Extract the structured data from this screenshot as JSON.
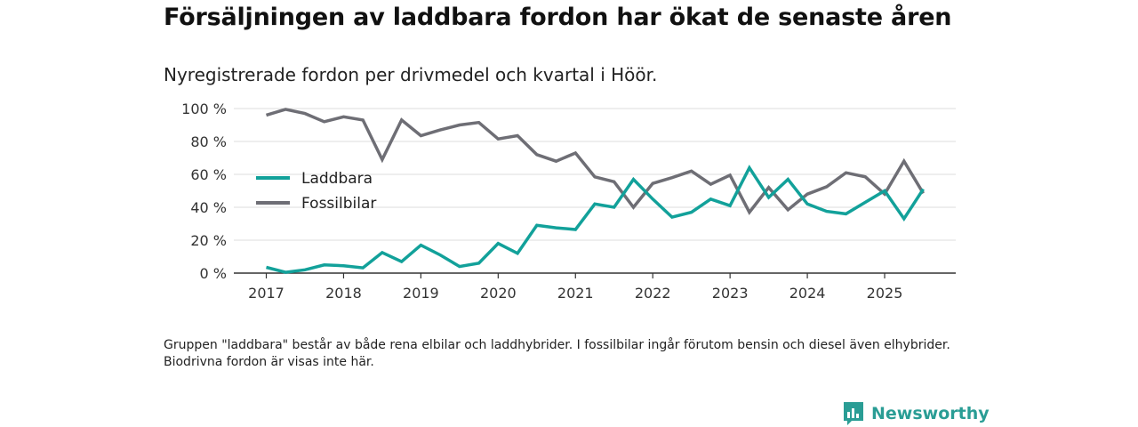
{
  "header": {
    "title": "Försäljningen av laddbara fordon har ökat de senaste åren",
    "subtitle": "Nyregistrerade fordon per drivmedel och kvartal i Höör."
  },
  "footnote": "Gruppen \"laddbara\" består av både rena elbilar och laddhybrider. I fossilbilar ingår förutom bensin och diesel även elhybrider. Biodrivna fordon är visas inte här.",
  "brand": {
    "name": "Newsworthy"
  },
  "colors": {
    "laddbara": "#12a19a",
    "fossilbilar": "#6e6e75",
    "grid": "#dcdcdc",
    "axis": "#333333",
    "brand": "#2a9d95"
  },
  "chart_data": {
    "type": "line",
    "title": "Försäljningen av laddbara fordon har ökat de senaste åren",
    "subtitle": "Nyregistrerade fordon per drivmedel och kvartal i Höör.",
    "xlabel": "",
    "ylabel": "",
    "ylim": [
      0,
      100
    ],
    "xlim": [
      2016.58,
      2025.92
    ],
    "yticks": [
      0,
      20,
      40,
      60,
      80,
      100
    ],
    "ytick_labels": [
      "0 %",
      "20 %",
      "40 %",
      "60 %",
      "80 %",
      "100 %"
    ],
    "xticks": [
      "2017",
      "2018",
      "2019",
      "2020",
      "2021",
      "2022",
      "2023",
      "2024",
      "2025"
    ],
    "legend_position": "center-left",
    "x": [
      2017.0,
      2017.25,
      2017.5,
      2017.75,
      2018.0,
      2018.25,
      2018.5,
      2018.75,
      2019.0,
      2019.25,
      2019.5,
      2019.75,
      2020.0,
      2020.25,
      2020.5,
      2020.75,
      2021.0,
      2021.25,
      2021.5,
      2021.75,
      2022.0,
      2022.25,
      2022.5,
      2022.75,
      2023.0,
      2023.25,
      2023.5,
      2023.75,
      2024.0,
      2024.25,
      2024.5,
      2024.75,
      2025.0,
      2025.25,
      2025.5
    ],
    "series": [
      {
        "name": "Laddbara",
        "color": "#12a19a",
        "values": [
          3.5,
          0.5,
          2,
          5,
          4.5,
          3.2,
          12.5,
          7,
          17,
          11,
          4,
          6,
          18,
          12,
          29,
          27.5,
          26.5,
          42,
          40,
          57,
          45,
          34,
          37,
          45,
          41,
          64,
          46,
          57,
          42,
          37.5,
          36,
          43,
          50,
          33,
          51
        ]
      },
      {
        "name": "Fossilbilar",
        "color": "#6e6e75",
        "values": [
          96,
          99.5,
          97,
          92,
          95,
          93,
          69,
          93,
          83.5,
          87,
          90,
          91.5,
          81.5,
          83.5,
          72,
          68,
          73,
          58.5,
          55.5,
          40,
          54.5,
          58,
          62,
          54,
          59.5,
          37,
          52,
          38.5,
          48,
          52.5,
          61,
          58.5,
          48,
          68,
          48.5
        ]
      }
    ]
  }
}
